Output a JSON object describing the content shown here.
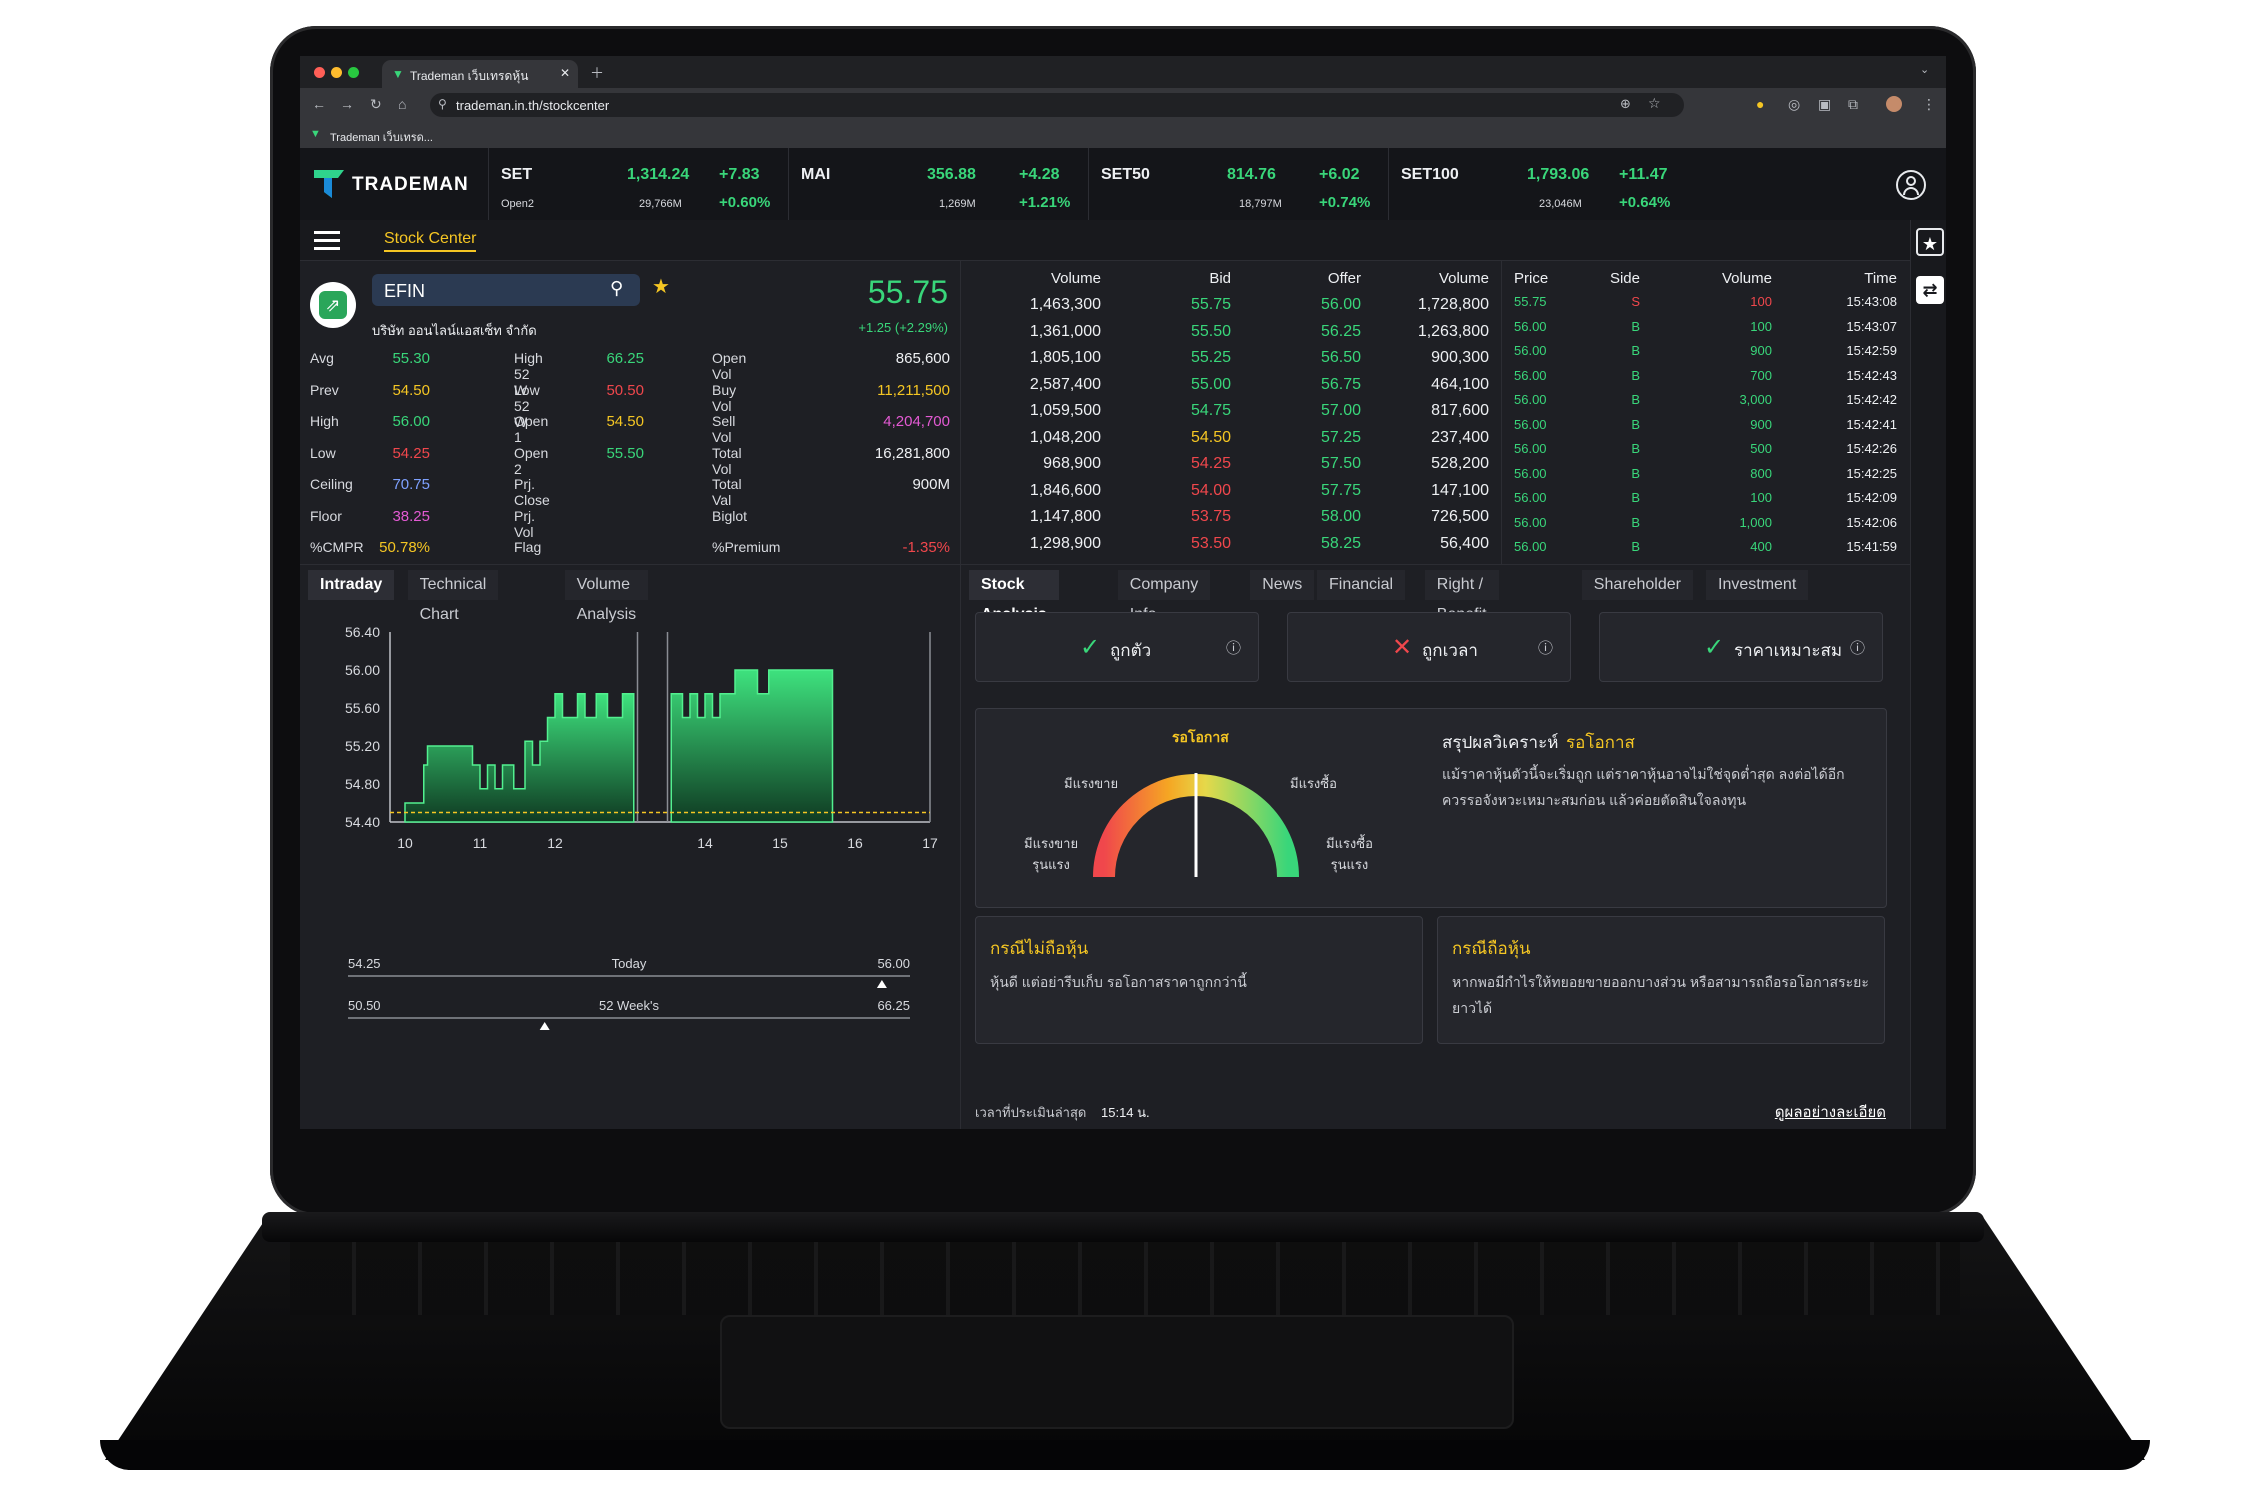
{
  "browser": {
    "tab_title": "Trademan เว็บเทรดหุ้น",
    "url": "trademan.in.th/stockcenter",
    "bookmark": "Trademan เว็บเทรด..."
  },
  "brand": "TRADEMAN",
  "indices": [
    {
      "name": "SET",
      "value": "1,314.24",
      "change": "+7.83",
      "sub": "Open2",
      "vol": "29,766M",
      "pct": "+0.60%"
    },
    {
      "name": "MAI",
      "value": "356.88",
      "change": "+4.28",
      "sub": "",
      "vol": "1,269M",
      "pct": "+1.21%"
    },
    {
      "name": "SET50",
      "value": "814.76",
      "change": "+6.02",
      "sub": "",
      "vol": "18,797M",
      "pct": "+0.74%"
    },
    {
      "name": "SET100",
      "value": "1,793.06",
      "change": "+11.47",
      "sub": "",
      "vol": "23,046M",
      "pct": "+0.64%"
    }
  ],
  "nav": {
    "stock_center": "Stock Center"
  },
  "stock": {
    "symbol": "EFIN",
    "name": "บริษัท ออนไลน์แอสเซ็ท จำกัด",
    "price": "55.75",
    "change": "+1.25 (+2.29%)",
    "col1": [
      {
        "label": "Avg",
        "value": "55.30",
        "color": "#39d67a"
      },
      {
        "label": "Prev",
        "value": "54.50",
        "color": "#f5c623"
      },
      {
        "label": "High",
        "value": "56.00",
        "color": "#39d67a"
      },
      {
        "label": "Low",
        "value": "54.25",
        "color": "#f0474c"
      },
      {
        "label": "Ceiling",
        "value": "70.75",
        "color": "#7ea1ff"
      },
      {
        "label": "Floor",
        "value": "38.25",
        "color": "#e35ad3"
      },
      {
        "label": "%CMPR",
        "value": "50.78%",
        "color": "#f5c623"
      }
    ],
    "col2": [
      {
        "label": "High 52 W",
        "value": "66.25",
        "color": "#39d67a"
      },
      {
        "label": "Low 52 W",
        "value": "50.50",
        "color": "#f0474c"
      },
      {
        "label": "Open 1",
        "value": "54.50",
        "color": "#f5c623"
      },
      {
        "label": "Open 2",
        "value": "55.50",
        "color": "#39d67a"
      },
      {
        "label": "Prj. Close",
        "value": "",
        "color": "#eef0f3"
      },
      {
        "label": "Prj. Vol",
        "value": "",
        "color": "#eef0f3"
      },
      {
        "label": "Flag",
        "value": "",
        "color": "#eef0f3"
      }
    ],
    "col3": [
      {
        "label": "Open Vol",
        "value": "865,600",
        "color": "#eef0f3"
      },
      {
        "label": "Buy Vol",
        "value": "11,211,500",
        "color": "#f5c623"
      },
      {
        "label": "Sell Vol",
        "value": "4,204,700",
        "color": "#e35ad3"
      },
      {
        "label": "Total Vol",
        "value": "16,281,800",
        "color": "#eef0f3"
      },
      {
        "label": "Total Val",
        "value": "900M",
        "color": "#eef0f3"
      },
      {
        "label": "Biglot",
        "value": "",
        "color": "#eef0f3"
      },
      {
        "label": "%Premium",
        "value": "-1.35%",
        "color": "#f0474c"
      }
    ]
  },
  "orderbook": {
    "headers": [
      "Volume",
      "Bid",
      "Offer",
      "Volume"
    ],
    "rows": [
      {
        "bv": "1,463,300",
        "bid": "55.75",
        "bc": "#39d67a",
        "offer": "56.00",
        "oc": "#39d67a",
        "ov": "1,728,800"
      },
      {
        "bv": "1,361,000",
        "bid": "55.50",
        "bc": "#39d67a",
        "offer": "56.25",
        "oc": "#39d67a",
        "ov": "1,263,800"
      },
      {
        "bv": "1,805,100",
        "bid": "55.25",
        "bc": "#39d67a",
        "offer": "56.50",
        "oc": "#39d67a",
        "ov": "900,300"
      },
      {
        "bv": "2,587,400",
        "bid": "55.00",
        "bc": "#39d67a",
        "offer": "56.75",
        "oc": "#39d67a",
        "ov": "464,100"
      },
      {
        "bv": "1,059,500",
        "bid": "54.75",
        "bc": "#39d67a",
        "offer": "57.00",
        "oc": "#39d67a",
        "ov": "817,600"
      },
      {
        "bv": "1,048,200",
        "bid": "54.50",
        "bc": "#f5c623",
        "offer": "57.25",
        "oc": "#39d67a",
        "ov": "237,400"
      },
      {
        "bv": "968,900",
        "bid": "54.25",
        "bc": "#f0474c",
        "offer": "57.50",
        "oc": "#39d67a",
        "ov": "528,200"
      },
      {
        "bv": "1,846,600",
        "bid": "54.00",
        "bc": "#f0474c",
        "offer": "57.75",
        "oc": "#39d67a",
        "ov": "147,100"
      },
      {
        "bv": "1,147,800",
        "bid": "53.75",
        "bc": "#f0474c",
        "offer": "58.00",
        "oc": "#39d67a",
        "ov": "726,500"
      },
      {
        "bv": "1,298,900",
        "bid": "53.50",
        "bc": "#f0474c",
        "offer": "58.25",
        "oc": "#39d67a",
        "ov": "56,400"
      }
    ]
  },
  "ticks": {
    "headers": [
      "Price",
      "Side",
      "Volume",
      "Time"
    ],
    "rows": [
      {
        "p": "55.75",
        "s": "S",
        "v": "100",
        "t": "15:43:08",
        "sell": true
      },
      {
        "p": "56.00",
        "s": "B",
        "v": "100",
        "t": "15:43:07",
        "sell": false
      },
      {
        "p": "56.00",
        "s": "B",
        "v": "900",
        "t": "15:42:59",
        "sell": false
      },
      {
        "p": "56.00",
        "s": "B",
        "v": "700",
        "t": "15:42:43",
        "sell": false
      },
      {
        "p": "56.00",
        "s": "B",
        "v": "3,000",
        "t": "15:42:42",
        "sell": false
      },
      {
        "p": "56.00",
        "s": "B",
        "v": "900",
        "t": "15:42:41",
        "sell": false
      },
      {
        "p": "56.00",
        "s": "B",
        "v": "500",
        "t": "15:42:26",
        "sell": false
      },
      {
        "p": "56.00",
        "s": "B",
        "v": "800",
        "t": "15:42:25",
        "sell": false
      },
      {
        "p": "56.00",
        "s": "B",
        "v": "100",
        "t": "15:42:09",
        "sell": false
      },
      {
        "p": "56.00",
        "s": "B",
        "v": "1,000",
        "t": "15:42:06",
        "sell": false
      },
      {
        "p": "56.00",
        "s": "B",
        "v": "400",
        "t": "15:41:59",
        "sell": false
      }
    ]
  },
  "left_tabs": [
    "Intraday",
    "Technical Chart",
    "Volume Analysis"
  ],
  "right_tabs": [
    "Stock Analysis",
    "Company Info",
    "News",
    "Financial",
    "Right / Benefit",
    "Shareholder",
    "Investment"
  ],
  "chart_data": {
    "type": "area",
    "y_ticks": [
      "56.40",
      "56.00",
      "55.60",
      "55.20",
      "54.80",
      "54.40"
    ],
    "x_ticks": [
      "10",
      "11",
      "12",
      "14",
      "15",
      "16",
      "17"
    ],
    "ylim": [
      54.4,
      56.4
    ],
    "xlim": [
      9.8,
      17
    ],
    "prev_close": 54.5,
    "series": [
      {
        "x": [
          10.0,
          10.25,
          10.3,
          10.75,
          10.9,
          11.0,
          11.1,
          11.2,
          11.3,
          11.45,
          11.6,
          11.7,
          11.8,
          11.9,
          12.0,
          12.1,
          12.2,
          12.3,
          12.4,
          12.55,
          12.7,
          12.9,
          13.05
        ],
        "y": [
          54.6,
          55.0,
          55.2,
          55.2,
          55.0,
          54.75,
          55.0,
          54.75,
          55.0,
          54.75,
          55.25,
          55.0,
          55.25,
          55.5,
          55.75,
          55.5,
          55.5,
          55.75,
          55.5,
          55.75,
          55.5,
          55.75,
          55.75
        ]
      },
      {
        "x": [
          13.55,
          13.6,
          13.7,
          13.8,
          13.9,
          14.0,
          14.1,
          14.2,
          14.3,
          14.4,
          14.55,
          14.7,
          14.85,
          15.0,
          15.2,
          15.4,
          15.7
        ],
        "y": [
          55.75,
          55.75,
          55.5,
          55.75,
          55.5,
          55.75,
          55.5,
          55.75,
          55.75,
          56.0,
          56.0,
          55.75,
          56.0,
          56.0,
          56.0,
          56.0,
          55.75
        ]
      }
    ]
  },
  "ranges": [
    {
      "low": "54.25",
      "label": "Today",
      "high": "56.00",
      "marker": 0.95
    },
    {
      "low": "50.50",
      "label": "52 Week's",
      "high": "66.25",
      "marker": 0.35
    }
  ],
  "signals": [
    {
      "mark": "✓",
      "mark_color": "#39d67a",
      "text": "ถูกตัว",
      "info": "ⓘ"
    },
    {
      "mark": "✕",
      "mark_color": "#f0474c",
      "text": "ถูกเวลา",
      "info": "ⓘ"
    },
    {
      "mark": "✓",
      "mark_color": "#39d67a",
      "text": "ราคาเหมาะสม",
      "info": "ⓘ"
    }
  ],
  "gauge": {
    "title": "รอโอกาส",
    "label_left": "มีแรงขาย",
    "label_right": "มีแรงซื้อ",
    "label_far_left": "มีแรงขาย\nรุนแรง",
    "label_far_right": "มีแรงซื้อ\nรุนแรง",
    "needle": 0.5
  },
  "summary": {
    "title": "สรุปผลวิเคราะห์",
    "verdict": "รอโอกาส",
    "text": "แม้ราคาหุ้นตัวนี้จะเริ่มถูก แต่ราคาหุ้นอาจไม่ใช่จุดต่ำสุด ลงต่อได้อีก ควรรอจังหวะเหมาะสมก่อน แล้วค่อยตัดสินใจลงทุน"
  },
  "advice": [
    {
      "title": "กรณีไม่ถือหุ้น",
      "text": "หุ้นดี แต่อย่ารีบเก็บ รอโอกาสราคาถูกกว่านี้"
    },
    {
      "title": "กรณีถือหุ้น",
      "text": "หากพอมีกำไรให้ทยอยขายออกบางส่วน หรือสามารถถือรอโอกาสระยะยาวได้"
    }
  ],
  "footer": {
    "label": "เวลาที่ประเมินล่าสุด",
    "time": "15:14 น.",
    "link": "ดูผลอย่างละเอียด"
  },
  "colors": {
    "accent": "#39d67a",
    "down": "#f0474c",
    "unchanged": "#f5c623",
    "ceiling": "#7ea1ff",
    "floor": "#e35ad3",
    "background": "#1e1f24"
  }
}
